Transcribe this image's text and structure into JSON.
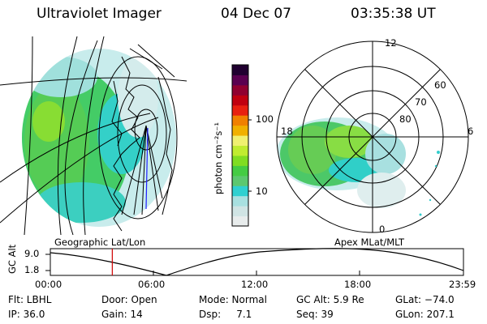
{
  "header": {
    "title": "Ultraviolet Imager",
    "date": "04 Dec 07",
    "time": "03:35:38 UT"
  },
  "colorbar": {
    "unit_label": "photon cm⁻²s⁻¹",
    "scale": "log",
    "tick_labels": [
      "100",
      "10"
    ],
    "colors": [
      "#e8ecec",
      "#d0e4e4",
      "#a8e0e0",
      "#2fd0d0",
      "#5cc870",
      "#44cc44",
      "#80dd22",
      "#c0ec30",
      "#f0f070",
      "#f0b000",
      "#f08000",
      "#e82010",
      "#c00010",
      "#900030",
      "#5a0050",
      "#200030"
    ]
  },
  "panels": {
    "left_label": "Geographic Lat/Lon",
    "right_label": "Apex MLat/MLT"
  },
  "polar": {
    "mlt_labels": [
      "12",
      "18",
      "6",
      "0"
    ],
    "lat_labels": [
      "60",
      "70",
      "80"
    ]
  },
  "altitude_plot": {
    "ylabel": "GC Alt",
    "y_ticks": [
      "9.0",
      "1.8"
    ],
    "x_ticks": [
      "00:00",
      "06:00",
      "12:00",
      "18:00",
      "23:59"
    ],
    "current_time_hours": 3.6,
    "marker_color": "#d00000"
  },
  "info": {
    "flt": "Flt: LBHL",
    "ip": "IP: 36.0",
    "door": "Door: Open",
    "gain": "Gain: 14",
    "mode": "Mode: Normal",
    "dsp": "Dsp:     7.1",
    "gc_alt": "GC Alt: 5.9 Re",
    "seq": "Seq: 39",
    "glat": "GLat: −74.0",
    "glon": "GLon: 207.1"
  }
}
